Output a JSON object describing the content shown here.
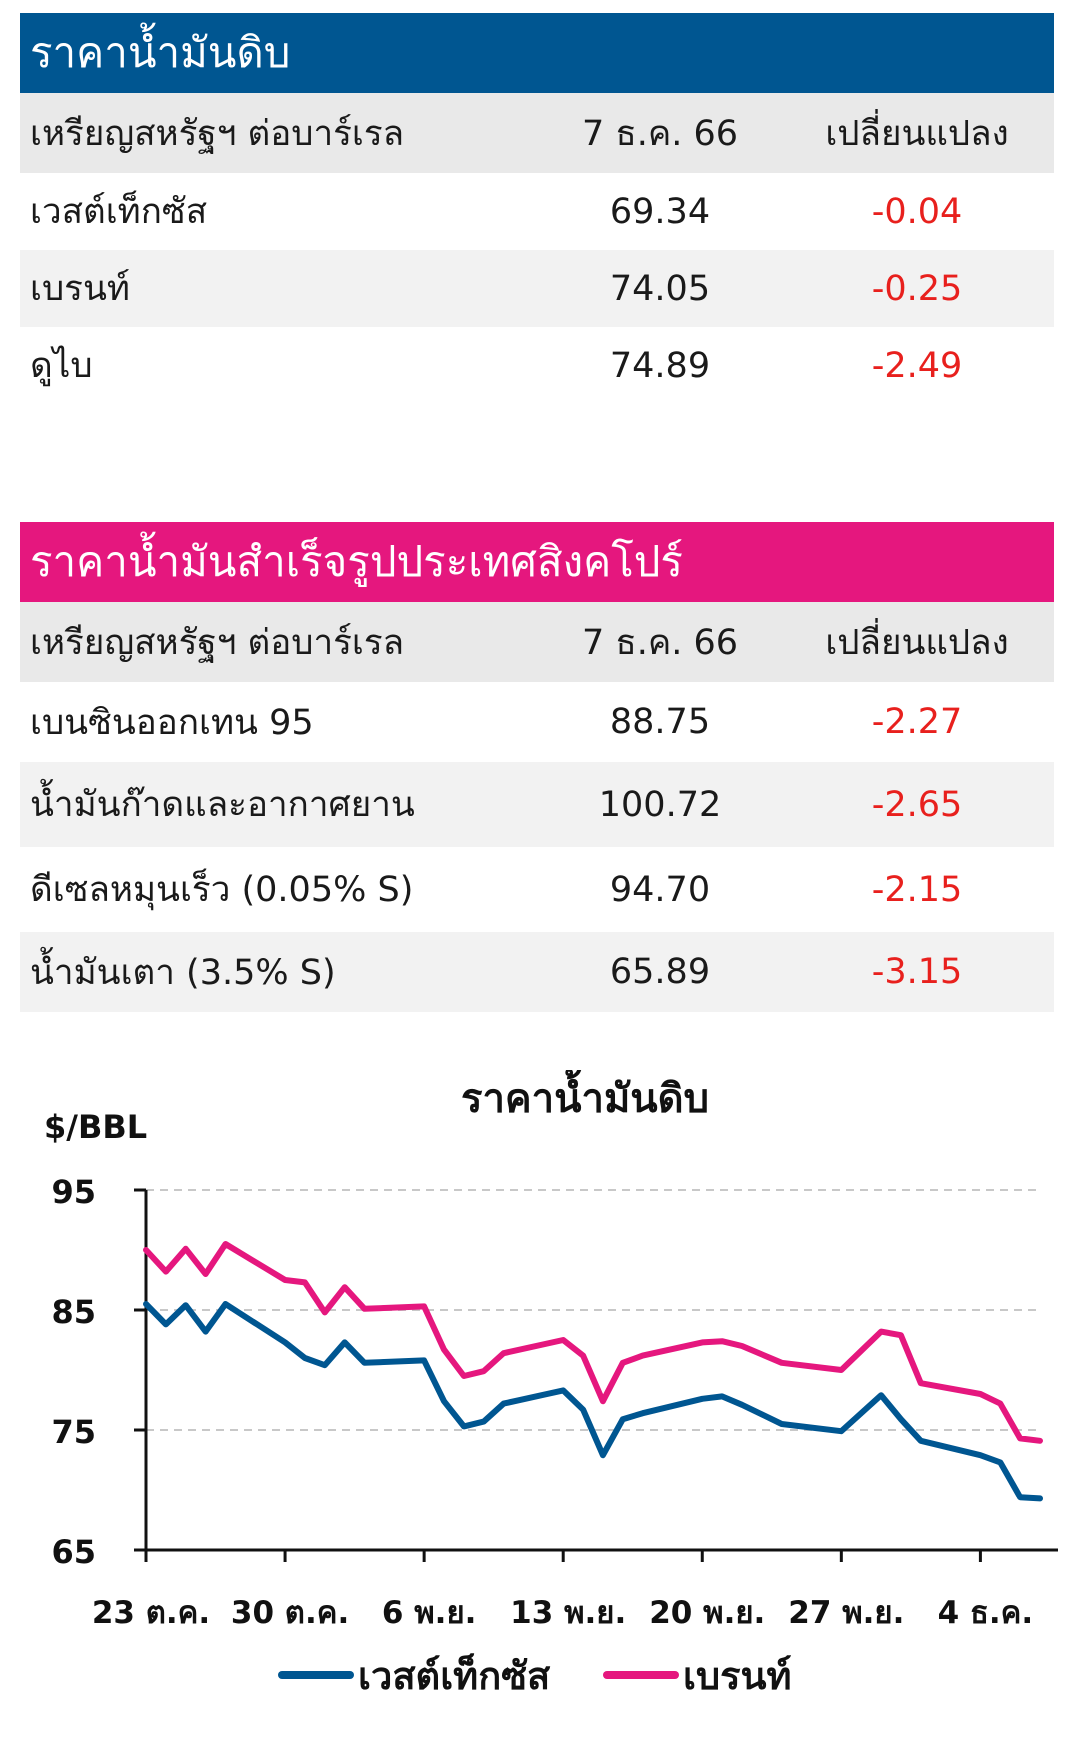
{
  "crude_table": {
    "title": "ราคาน้ำมันดิบ",
    "title_color": "#005691",
    "header": {
      "unit": "เหรียญสหรัฐฯ ต่อบาร์เรล",
      "date": "7 ธ.ค. 66",
      "change": "เปลี่ยนแปลง"
    },
    "rows": [
      {
        "name": "เวสต์เท็กซัส",
        "price": "69.34",
        "change": "-0.04"
      },
      {
        "name": "เบรนท์",
        "price": "74.05",
        "change": "-0.25"
      },
      {
        "name": "ดูไบ",
        "price": "74.89",
        "change": "-2.49"
      }
    ]
  },
  "products_table": {
    "title": "ราคาน้ำมันสำเร็จรูปประเทศสิงคโปร์",
    "title_color": "#e5177e",
    "header": {
      "unit": "เหรียญสหรัฐฯ ต่อบาร์เรล",
      "date": "7 ธ.ค. 66",
      "change": "เปลี่ยนแปลง"
    },
    "rows": [
      {
        "name": "เบนซินออกเทน 95",
        "price": "88.75",
        "change": "-2.27"
      },
      {
        "name": "น้ำมันก๊าดและอากาศยาน",
        "price": "100.72",
        "change": "-2.65"
      },
      {
        "name": "ดีเซลหมุนเร็ว (0.05% S)",
        "price": "94.70",
        "change": "-2.15"
      },
      {
        "name": "น้ำมันเตา (3.5% S)",
        "price": "65.89",
        "change": "-3.15"
      }
    ]
  },
  "negative_color": "#e8201d",
  "chart_data": {
    "type": "line",
    "title": "ราคาน้ำมันดิบ",
    "ylabel": "$/BBL",
    "xlabel": "",
    "ylim": [
      65,
      95
    ],
    "yticks": [
      "95",
      "85",
      "75",
      "65"
    ],
    "grid": "horizontal dashed",
    "legend": "bottom",
    "x_tick_labels": [
      "23 ต.ค.",
      "30 ต.ค.",
      "6 พ.ย.",
      "13 พ.ย.",
      "20 พ.ย.",
      "27 พ.ย.",
      "4 ธ.ค."
    ],
    "x": [
      "23 ต.ค.",
      "24 ต.ค.",
      "25 ต.ค.",
      "26 ต.ค.",
      "27 ต.ค.",
      "30 ต.ค.",
      "31 ต.ค.",
      "1 พ.ย.",
      "2 พ.ย.",
      "3 พ.ย.",
      "6 พ.ย.",
      "7 พ.ย.",
      "8 พ.ย.",
      "9 พ.ย.",
      "10 พ.ย.",
      "13 พ.ย.",
      "14 พ.ย.",
      "15 พ.ย.",
      "16 พ.ย.",
      "17 พ.ย.",
      "20 พ.ย.",
      "21 พ.ย.",
      "22 พ.ย.",
      "24 พ.ย.",
      "27 พ.ย.",
      "28 พ.ย.",
      "29 พ.ย.",
      "30 พ.ย.",
      "1 ธ.ค.",
      "4 ธ.ค.",
      "5 ธ.ค.",
      "6 ธ.ค.",
      "7 ธ.ค."
    ],
    "x_positions": [
      0,
      1,
      2,
      3,
      4,
      7,
      8,
      9,
      10,
      11,
      14,
      15,
      16,
      17,
      18,
      21,
      22,
      23,
      24,
      25,
      28,
      29,
      30,
      32,
      35,
      36,
      37,
      38,
      39,
      42,
      43,
      44,
      45
    ],
    "x_tick_positions": [
      0,
      7,
      14,
      21,
      28,
      35,
      42
    ],
    "series": [
      {
        "name": "เวสต์เท็กซัส",
        "color": "#005691",
        "values": [
          85.5,
          83.8,
          85.4,
          83.2,
          85.5,
          82.3,
          81.0,
          80.4,
          82.3,
          80.6,
          80.8,
          77.4,
          75.3,
          75.7,
          77.2,
          78.3,
          76.7,
          72.9,
          75.9,
          76.4,
          77.6,
          77.8,
          77.1,
          75.5,
          74.9,
          76.4,
          77.9,
          75.9,
          74.1,
          72.9,
          72.3,
          69.4,
          69.3
        ]
      },
      {
        "name": "เบรนท์",
        "color": "#e5177e",
        "values": [
          90.0,
          88.2,
          90.1,
          88.0,
          90.5,
          87.5,
          87.3,
          84.8,
          86.9,
          85.1,
          85.3,
          81.7,
          79.5,
          79.9,
          81.4,
          82.5,
          81.2,
          77.4,
          80.6,
          81.2,
          82.3,
          82.4,
          82.0,
          80.6,
          80.0,
          81.6,
          83.2,
          82.9,
          78.9,
          78.0,
          77.2,
          74.3,
          74.1
        ]
      }
    ]
  }
}
